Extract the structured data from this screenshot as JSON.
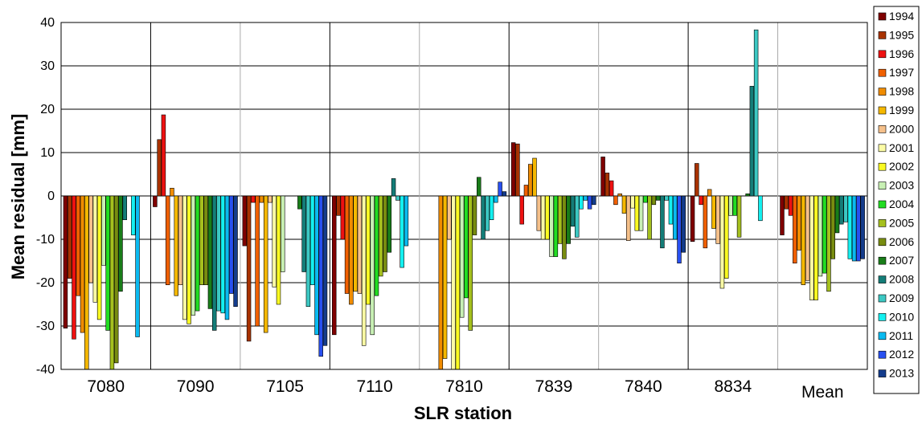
{
  "chart_data": {
    "type": "bar",
    "xlabel": "SLR station",
    "ylabel": "Mean residual [mm]",
    "ylim": [
      -40,
      40
    ],
    "yticks": [
      40,
      30,
      20,
      10,
      0,
      -10,
      -20,
      -30,
      -40
    ],
    "grid": true,
    "legend_position": "right",
    "categories": [
      "7080",
      "7090",
      "7105",
      "7110",
      "7810",
      "7839",
      "7840",
      "8834",
      "Mean"
    ],
    "series": [
      {
        "name": "1994",
        "color": "#7f0000",
        "values": [
          -30.5,
          -2.5,
          -11.5,
          -32,
          null,
          12.3,
          9,
          -10.5,
          -9
        ]
      },
      {
        "name": "1995",
        "color": "#a83200",
        "values": [
          -19,
          13,
          -33.5,
          -4.5,
          null,
          12,
          5.3,
          7.5,
          -3
        ]
      },
      {
        "name": "1996",
        "color": "#ee1111",
        "values": [
          -33,
          18.7,
          -1.5,
          -10,
          null,
          -6.5,
          3.5,
          -2,
          -4.5
        ]
      },
      {
        "name": "1997",
        "color": "#f06000",
        "values": [
          -23,
          -20.5,
          -30,
          -22.5,
          null,
          2.5,
          -2,
          -12,
          -15.5
        ]
      },
      {
        "name": "1998",
        "color": "#f08c00",
        "values": [
          -31.5,
          1.8,
          -1.5,
          -25,
          -40,
          7.3,
          0.5,
          1.5,
          -12.5
        ]
      },
      {
        "name": "1999",
        "color": "#f5b800",
        "values": [
          -40,
          -23,
          -31.5,
          -22,
          -37.5,
          8.7,
          -4,
          -7.5,
          -20.5
        ]
      },
      {
        "name": "2000",
        "color": "#f5c08a",
        "values": [
          -20,
          -20.5,
          -1.5,
          -22.5,
          -10,
          -8,
          -10.3,
          -11,
          -19.5
        ]
      },
      {
        "name": "2001",
        "color": "#fbfba5",
        "values": [
          -24.5,
          -28.5,
          -21,
          -34.5,
          -40,
          -10,
          -2.8,
          -21.3,
          -24
        ]
      },
      {
        "name": "2002",
        "color": "#fafa22",
        "values": [
          -28.5,
          -29.5,
          -25,
          -25,
          -40,
          -10,
          -8,
          -19,
          -24
        ]
      },
      {
        "name": "2003",
        "color": "#c8f0b4",
        "values": [
          -16,
          -27.5,
          -17.5,
          -32,
          -28,
          -14,
          -8,
          -4.5,
          -18.5
        ]
      },
      {
        "name": "2004",
        "color": "#22dd22",
        "values": [
          -31,
          -26.5,
          null,
          -23,
          -23.5,
          -14,
          -1.5,
          -4.5,
          -17.8
        ]
      },
      {
        "name": "2005",
        "color": "#a5c01e",
        "values": [
          -40,
          -20.5,
          null,
          -18.5,
          -31,
          -11,
          -10,
          -9.5,
          -22
        ]
      },
      {
        "name": "2006",
        "color": "#788c10",
        "values": [
          -38.5,
          -20.5,
          null,
          -17.5,
          -9,
          -14.5,
          -2,
          null,
          -14.5
        ]
      },
      {
        "name": "2007",
        "color": "#197d19",
        "values": [
          -22,
          -26,
          -3,
          -13,
          4.3,
          -11,
          -1,
          0.5,
          -8.5
        ]
      },
      {
        "name": "2008",
        "color": "#147d78",
        "values": [
          -5.5,
          -31,
          -17.5,
          4,
          -10,
          -7,
          -12,
          25.3,
          -6.5
        ]
      },
      {
        "name": "2009",
        "color": "#3cc8c3",
        "values": [
          null,
          -26.5,
          -25.5,
          -1,
          -8,
          -9.5,
          -1,
          38.3,
          -6
        ]
      },
      {
        "name": "2010",
        "color": "#14f0f0",
        "values": [
          -9,
          -27,
          -20.5,
          -16.5,
          -5.5,
          -3,
          -6.5,
          -5.7,
          -14.5
        ]
      },
      {
        "name": "2011",
        "color": "#0abaf0",
        "values": [
          -32.5,
          -28.5,
          -32,
          -11.5,
          -1.5,
          -1,
          -10,
          null,
          -15
        ]
      },
      {
        "name": "2012",
        "color": "#2850f0",
        "values": [
          null,
          -22.5,
          -37,
          null,
          3.2,
          -3,
          -15.5,
          null,
          -15
        ]
      },
      {
        "name": "2013",
        "color": "#143c8c",
        "values": [
          null,
          -25.5,
          -34.5,
          null,
          1,
          -2,
          -13,
          null,
          -14.5
        ]
      }
    ]
  }
}
